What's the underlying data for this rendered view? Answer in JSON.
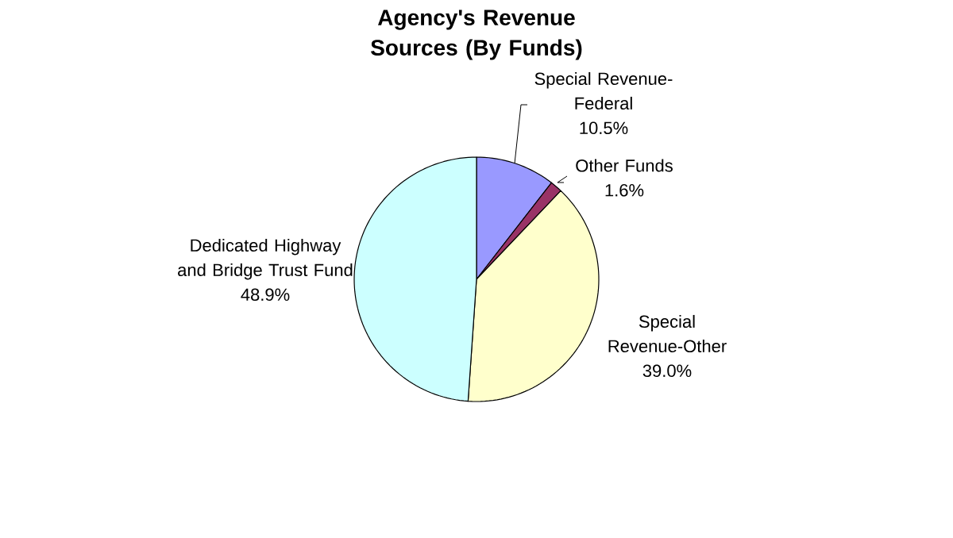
{
  "chart_data": {
    "type": "pie",
    "title": "Agency's Revenue Sources (By Funds)",
    "categories": [
      "Special Revenue-Federal",
      "Other Funds",
      "Special Revenue-Other",
      "Dedicated Highway and Bridge Trust Fund"
    ],
    "values": [
      10.5,
      1.6,
      39.0,
      48.9
    ],
    "value_labels": [
      "10.5%",
      "1.6%",
      "39.0%",
      "48.9%"
    ],
    "colors": [
      "#9999ff",
      "#993366",
      "#ffffcc",
      "#ccffff"
    ],
    "legend": false
  }
}
